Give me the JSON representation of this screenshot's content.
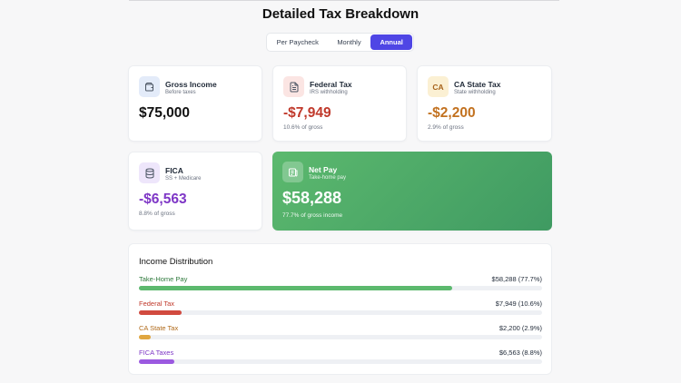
{
  "page": {
    "title": "Detailed Tax Breakdown"
  },
  "period_tabs": {
    "options": [
      "Per Paycheck",
      "Monthly",
      "Annual"
    ],
    "selected": "Annual"
  },
  "cards": {
    "gross": {
      "label": "Gross Income",
      "sub": "Before taxes",
      "value": "$75,000",
      "icon": "wallet-icon"
    },
    "federal": {
      "label": "Federal Tax",
      "sub": "IRS withholding",
      "value": "-$7,949",
      "note": "10.6% of gross",
      "icon": "document-icon"
    },
    "state": {
      "label": "CA State Tax",
      "sub": "State withholding",
      "value": "-$2,200",
      "note": "2.9% of gross",
      "badge": "CA"
    },
    "fica": {
      "label": "FICA",
      "sub": "SS + Medicare",
      "value": "-$6,563",
      "note": "8.8% of gross",
      "icon": "database-icon"
    },
    "net": {
      "label": "Net Pay",
      "sub": "Take-home pay",
      "value": "$58,288",
      "note": "77.7% of gross income",
      "icon": "receipt-icon"
    }
  },
  "distribution": {
    "title": "Income Distribution",
    "rows": [
      {
        "name": "Take-Home Pay",
        "amount": "$58,288 (77.7%)",
        "fraction": 0.777,
        "color": "#5cb96e",
        "label_color": "#2f7a3d"
      },
      {
        "name": "Federal Tax",
        "amount": "$7,949 (10.6%)",
        "fraction": 0.106,
        "color": "#d14a3f",
        "label_color": "#c0392b"
      },
      {
        "name": "CA State Tax",
        "amount": "$2,200 (2.9%)",
        "fraction": 0.029,
        "color": "#e0a640",
        "label_color": "#b06a1a"
      },
      {
        "name": "FICA Taxes",
        "amount": "$6,563 (8.8%)",
        "fraction": 0.088,
        "color": "#9b59e0",
        "label_color": "#7e36c6"
      }
    ]
  }
}
